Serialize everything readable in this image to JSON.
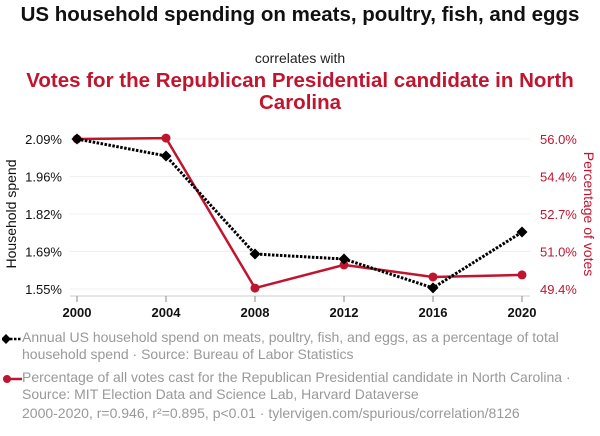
{
  "titles": {
    "series1_title": "US household spending on meats, poultry, fish, and eggs",
    "connector": "correlates with",
    "series2_title": "Votes for the Republican Presidential candidate in North Carolina"
  },
  "legend": [
    {
      "marker": "diamond-dotted-line",
      "color": "#000000",
      "text": "Annual US household spend on meats, poultry, fish, and eggs, as a percentage of total household spend · Source: Bureau of Labor Statistics"
    },
    {
      "marker": "circle-solid-line",
      "color": "#c0152f",
      "text": "Percentage of all votes cast for the Republican Presidential candidate in North Carolina · Source: MIT Election Data and Science Lab, Harvard Dataverse"
    }
  ],
  "footer": "2000-2020, r=0.946, r²=0.895, p<0.01 · tylervigen.com/spurious/correlation/8126",
  "chart_data": {
    "type": "line",
    "title": "US household spending on meats, poultry, fish, and eggs correlates with Votes for the Republican Presidential candidate in North Carolina",
    "x": [
      2000,
      2004,
      2008,
      2012,
      2016,
      2020
    ],
    "x_ticks": [
      "2000",
      "2004",
      "2008",
      "2012",
      "2016",
      "2020"
    ],
    "grid": true,
    "series": [
      {
        "name": "Household spend",
        "axis": "left",
        "color": "#000000",
        "style": "dotted",
        "marker": "diamond",
        "values": [
          2.09,
          2.029,
          1.676,
          1.658,
          1.554,
          1.755
        ]
      },
      {
        "name": "Percentage of votes",
        "axis": "right",
        "color": "#c0152f",
        "style": "solid",
        "marker": "circle",
        "values": [
          56.0,
          56.04,
          49.44,
          50.46,
          49.93,
          50.02
        ]
      }
    ],
    "left_axis": {
      "label": "Household spend",
      "ticks": [
        "2.09%",
        "1.96%",
        "1.82%",
        "1.69%",
        "1.55%"
      ],
      "range": [
        1.55,
        2.09
      ]
    },
    "right_axis": {
      "label": "Percentage of votes",
      "ticks": [
        "56.0%",
        "54.4%",
        "52.7%",
        "51.0%",
        "49.4%"
      ],
      "range": [
        49.4,
        56.0
      ]
    }
  }
}
